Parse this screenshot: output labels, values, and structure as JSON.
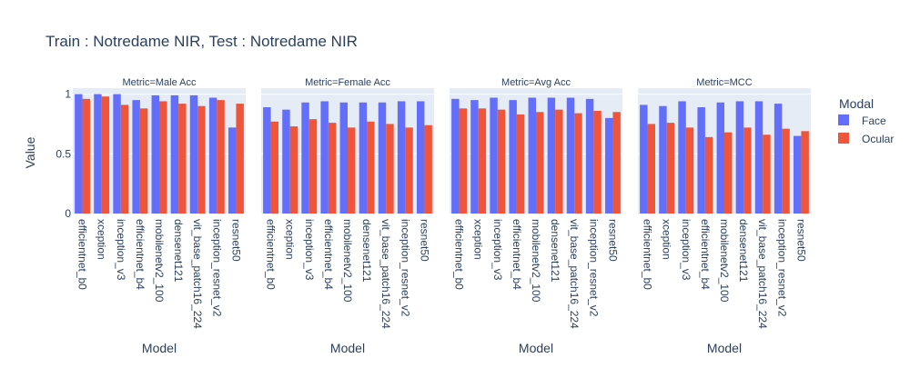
{
  "colors": {
    "face": "#636efa",
    "ocular": "#ef553b",
    "panel_bg": "#e5ecf6",
    "grid": "#ffffff",
    "text": "#2a3f5f"
  },
  "chart_data": {
    "type": "bar",
    "title": "Train : Notredame NIR, Test : Notredame NIR",
    "xlabel": "Model",
    "ylabel": "Value",
    "ylim": [
      0,
      1.05
    ],
    "yticks": [
      "0",
      "0.5",
      "1"
    ],
    "legend_title": "Modal",
    "legend_position": "right",
    "categories": [
      "efficientnet_b0",
      "xception",
      "inception_v3",
      "efficientnet_b4",
      "mobilenetv2_100",
      "densenet121",
      "vit_base_patch16_224",
      "inception_resnet_v2",
      "resnet50"
    ],
    "series_names": [
      "Face",
      "Ocular"
    ],
    "facets": [
      {
        "label": "Metric=Male Acc",
        "series": [
          {
            "name": "Face",
            "values": [
              1.0,
              1.0,
              1.0,
              0.95,
              0.99,
              0.99,
              0.99,
              0.97,
              0.72
            ]
          },
          {
            "name": "Ocular",
            "values": [
              0.96,
              0.98,
              0.91,
              0.88,
              0.94,
              0.92,
              0.9,
              0.95,
              0.92
            ]
          }
        ]
      },
      {
        "label": "Metric=Female Acc",
        "series": [
          {
            "name": "Face",
            "values": [
              0.89,
              0.87,
              0.93,
              0.94,
              0.93,
              0.93,
              0.93,
              0.94,
              0.94
            ]
          },
          {
            "name": "Ocular",
            "values": [
              0.77,
              0.73,
              0.79,
              0.76,
              0.72,
              0.77,
              0.75,
              0.72,
              0.74
            ]
          }
        ]
      },
      {
        "label": "Metric=Avg Acc",
        "series": [
          {
            "name": "Face",
            "values": [
              0.96,
              0.95,
              0.97,
              0.95,
              0.97,
              0.97,
              0.97,
              0.96,
              0.8
            ]
          },
          {
            "name": "Ocular",
            "values": [
              0.88,
              0.88,
              0.87,
              0.83,
              0.85,
              0.87,
              0.84,
              0.86,
              0.85
            ]
          }
        ]
      },
      {
        "label": "Metric=MCC",
        "series": [
          {
            "name": "Face",
            "values": [
              0.91,
              0.9,
              0.94,
              0.89,
              0.93,
              0.94,
              0.94,
              0.92,
              0.65
            ]
          },
          {
            "name": "Ocular",
            "values": [
              0.75,
              0.76,
              0.72,
              0.64,
              0.68,
              0.72,
              0.66,
              0.71,
              0.69
            ]
          }
        ]
      }
    ]
  }
}
